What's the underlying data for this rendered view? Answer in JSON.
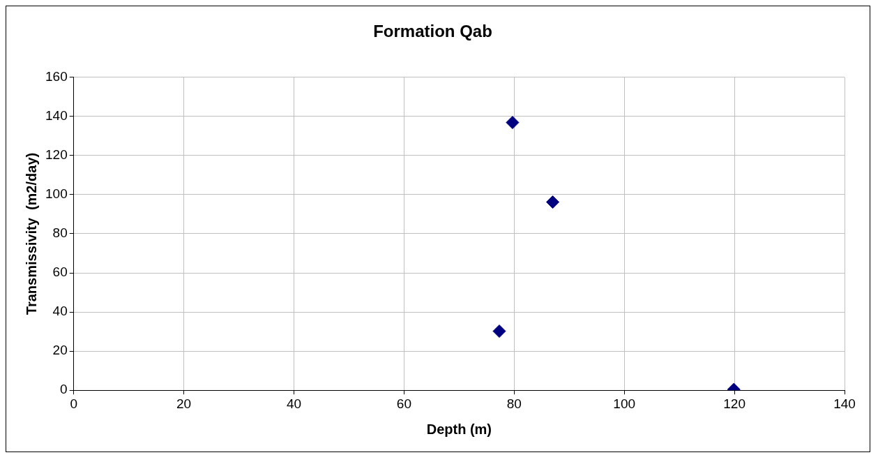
{
  "chart_data": {
    "type": "scatter",
    "title": "Formation Qab",
    "xlabel": "Depth (m)",
    "ylabel": "Transmissivity  (m2/day)",
    "x": [
      77.3,
      79.7,
      87,
      119.9
    ],
    "series": [
      {
        "color": "#000080",
        "values": [
          30.2,
          136.9,
          96.2,
          0.4
        ]
      }
    ],
    "xlim": [
      0,
      140
    ],
    "xticks": [
      0,
      20,
      40,
      60,
      80,
      100,
      120,
      140
    ],
    "ylim": [
      0,
      160
    ],
    "yticks": [
      0,
      20,
      40,
      60,
      80,
      100,
      120,
      140,
      160
    ],
    "grid": true,
    "legend": false,
    "marker": "diamond"
  }
}
